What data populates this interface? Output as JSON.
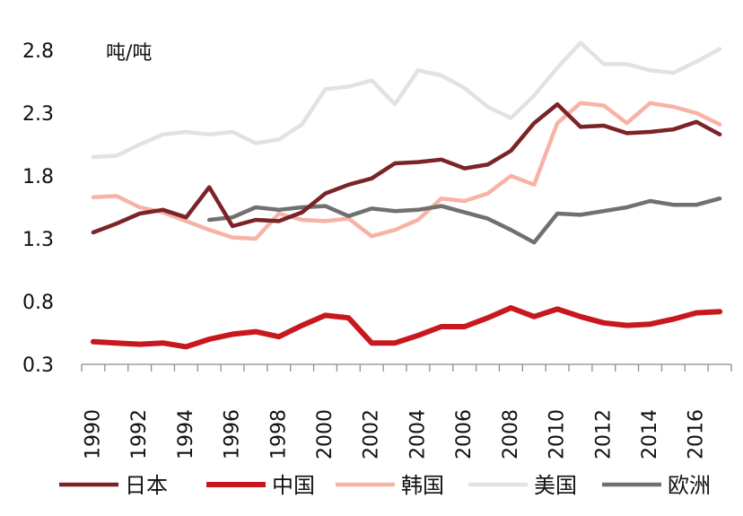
{
  "chart_data": {
    "type": "line",
    "unit_label": "吨/吨",
    "ylim": [
      0.3,
      2.8
    ],
    "yticks": [
      "0.3",
      "0.8",
      "1.3",
      "1.8",
      "2.3",
      "2.8"
    ],
    "xlim": [
      1989.5,
      2017.5
    ],
    "xticks": [
      "1990",
      "1992",
      "1994",
      "1996",
      "1998",
      "2000",
      "2002",
      "2004",
      "2006",
      "2008",
      "2010",
      "2012",
      "2014",
      "2016"
    ],
    "grid": false,
    "legend_position": "bottom",
    "series": [
      {
        "name": "美国",
        "color": "#e2e2e2",
        "x": [
          1990,
          1991,
          1992,
          1993,
          1994,
          1995,
          1996,
          1997,
          1998,
          1999,
          2000,
          2001,
          2002,
          2003,
          2004,
          2005,
          2006,
          2007,
          2008,
          2009,
          2010,
          2011,
          2012,
          2013,
          2014,
          2015,
          2016,
          2017
        ],
        "values": [
          1.95,
          1.96,
          2.05,
          2.13,
          2.15,
          2.13,
          2.15,
          2.06,
          2.09,
          2.21,
          2.49,
          2.51,
          2.56,
          2.37,
          2.64,
          2.6,
          2.5,
          2.35,
          2.26,
          2.44,
          2.66,
          2.86,
          2.69,
          2.69,
          2.64,
          2.62,
          2.71,
          2.81
        ]
      },
      {
        "name": "韩国",
        "color": "#f7b3a5",
        "x": [
          1990,
          1991,
          1992,
          1993,
          1994,
          1995,
          1996,
          1997,
          1998,
          1999,
          2000,
          2001,
          2002,
          2003,
          2004,
          2005,
          2006,
          2007,
          2008,
          2009,
          2010,
          2011,
          2012,
          2013,
          2014,
          2015,
          2016,
          2017
        ],
        "values": [
          1.63,
          1.64,
          1.55,
          1.51,
          1.44,
          1.37,
          1.31,
          1.3,
          1.5,
          1.45,
          1.44,
          1.46,
          1.32,
          1.37,
          1.45,
          1.62,
          1.6,
          1.66,
          1.8,
          1.73,
          2.22,
          2.38,
          2.36,
          2.22,
          2.38,
          2.35,
          2.3,
          2.21
        ]
      },
      {
        "name": "欧洲",
        "color": "#707070",
        "x": [
          1995,
          1996,
          1997,
          1998,
          1999,
          2000,
          2001,
          2002,
          2003,
          2004,
          2005,
          2006,
          2007,
          2008,
          2009,
          2010,
          2011,
          2012,
          2013,
          2014,
          2015,
          2016,
          2017
        ],
        "values": [
          1.45,
          1.47,
          1.55,
          1.53,
          1.55,
          1.56,
          1.48,
          1.54,
          1.52,
          1.53,
          1.56,
          1.51,
          1.46,
          1.37,
          1.27,
          1.5,
          1.49,
          1.52,
          1.55,
          1.6,
          1.57,
          1.57,
          1.62
        ]
      },
      {
        "name": "日本",
        "color": "#7a2328",
        "x": [
          1990,
          1991,
          1992,
          1993,
          1994,
          1995,
          1996,
          1997,
          1998,
          1999,
          2000,
          2001,
          2002,
          2003,
          2004,
          2005,
          2006,
          2007,
          2008,
          2009,
          2010,
          2011,
          2012,
          2013,
          2014,
          2015,
          2016,
          2017
        ],
        "values": [
          1.35,
          1.42,
          1.5,
          1.53,
          1.47,
          1.71,
          1.4,
          1.45,
          1.44,
          1.51,
          1.66,
          1.73,
          1.78,
          1.9,
          1.91,
          1.93,
          1.86,
          1.89,
          2.0,
          2.22,
          2.37,
          2.19,
          2.2,
          2.14,
          2.15,
          2.17,
          2.23,
          2.13
        ]
      },
      {
        "name": "中国",
        "color": "#c8171e",
        "x": [
          1990,
          1991,
          1992,
          1993,
          1994,
          1995,
          1996,
          1997,
          1998,
          1999,
          2000,
          2001,
          2002,
          2003,
          2004,
          2005,
          2006,
          2007,
          2008,
          2009,
          2010,
          2011,
          2012,
          2013,
          2014,
          2015,
          2016,
          2017
        ],
        "values": [
          0.48,
          0.47,
          0.46,
          0.47,
          0.44,
          0.5,
          0.54,
          0.56,
          0.52,
          0.61,
          0.69,
          0.67,
          0.47,
          0.47,
          0.53,
          0.6,
          0.6,
          0.67,
          0.75,
          0.68,
          0.74,
          0.68,
          0.63,
          0.61,
          0.62,
          0.66,
          0.71,
          0.72
        ]
      }
    ],
    "legend": [
      {
        "name": "日本",
        "color": "#7a2328"
      },
      {
        "name": "中国",
        "color": "#c8171e"
      },
      {
        "name": "韩国",
        "color": "#f7b3a5"
      },
      {
        "name": "美国",
        "color": "#e2e2e2"
      },
      {
        "name": "欧洲",
        "color": "#707070"
      }
    ]
  }
}
